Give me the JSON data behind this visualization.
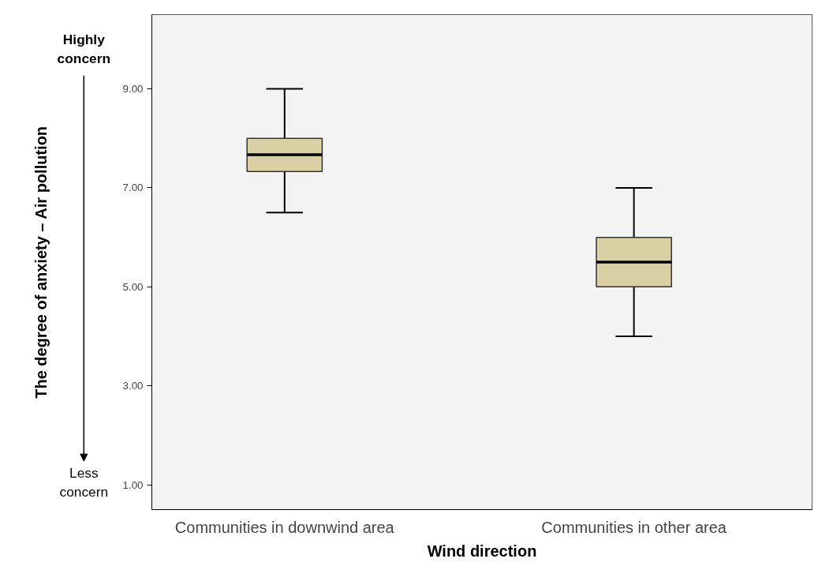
{
  "chart_data": {
    "type": "box",
    "xlabel": "Wind direction",
    "ylabel": "The degree of anxiety – Air pollution",
    "categories": [
      "Communities in downwind area",
      "Communities in other area"
    ],
    "boxes": [
      {
        "low": 6.5,
        "q1": 7.33,
        "median": 7.67,
        "q3": 8.0,
        "high": 9.0
      },
      {
        "low": 4.0,
        "q1": 5.0,
        "median": 5.5,
        "q3": 6.0,
        "high": 7.0
      }
    ],
    "color": "#d9d1a3",
    "ylim": [
      0.5,
      10.5
    ],
    "yticks": [
      {
        "value": 1,
        "label": "1.00"
      },
      {
        "value": 3,
        "label": "3.00"
      },
      {
        "value": 5,
        "label": "5.00"
      },
      {
        "value": 7,
        "label": "7.00"
      },
      {
        "value": 9,
        "label": "9.00"
      }
    ],
    "annotations": [
      "Highly concern",
      "Less concern"
    ],
    "grid": false
  }
}
